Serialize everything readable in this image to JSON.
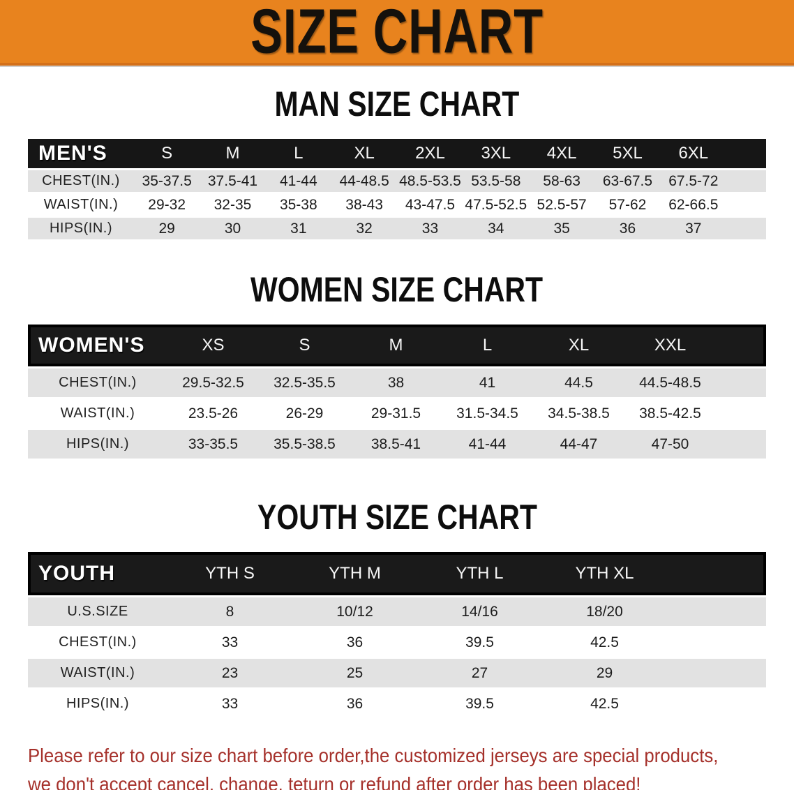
{
  "banner": {
    "title": "SIZE CHART",
    "bg_color": "#e8831e",
    "text_color": "#15110c"
  },
  "sections": [
    {
      "id": "men",
      "title": "MAN SIZE CHART",
      "table": {
        "header_label": "MEN'S",
        "columns": [
          "S",
          "M",
          "L",
          "XL",
          "2XL",
          "3XL",
          "4XL",
          "5XL",
          "6XL"
        ],
        "rows": [
          {
            "label": "CHEST(IN.)",
            "values": [
              "35-37.5",
              "37.5-41",
              "41-44",
              "44-48.5",
              "48.5-53.5",
              "53.5-58",
              "58-63",
              "63-67.5",
              "67.5-72"
            ]
          },
          {
            "label": "WAIST(IN.)",
            "values": [
              "29-32",
              "32-35",
              "35-38",
              "38-43",
              "43-47.5",
              "47.5-52.5",
              "52.5-57",
              "57-62",
              "62-66.5"
            ]
          },
          {
            "label": "HIPS(IN.)",
            "values": [
              "29",
              "30",
              "31",
              "32",
              "33",
              "34",
              "35",
              "36",
              "37"
            ]
          }
        ]
      }
    },
    {
      "id": "women",
      "title": "WOMEN SIZE CHART",
      "table": {
        "header_label": "WOMEN'S",
        "columns": [
          "XS",
          "S",
          "M",
          "L",
          "XL",
          "XXL"
        ],
        "rows": [
          {
            "label": "CHEST(IN.)",
            "values": [
              "29.5-32.5",
              "32.5-35.5",
              "38",
              "41",
              "44.5",
              "44.5-48.5"
            ]
          },
          {
            "label": "WAIST(IN.)",
            "values": [
              "23.5-26",
              "26-29",
              "29-31.5",
              "31.5-34.5",
              "34.5-38.5",
              "38.5-42.5"
            ]
          },
          {
            "label": "HIPS(IN.)",
            "values": [
              "33-35.5",
              "35.5-38.5",
              "38.5-41",
              "41-44",
              "44-47",
              "47-50"
            ]
          }
        ]
      }
    },
    {
      "id": "youth",
      "title": "YOUTH SIZE CHART",
      "table": {
        "header_label": "YOUTH",
        "columns": [
          "YTH S",
          "YTH M",
          "YTH L",
          "YTH XL"
        ],
        "rows": [
          {
            "label": "U.S.SIZE",
            "values": [
              "8",
              "10/12",
              "14/16",
              "18/20"
            ]
          },
          {
            "label": "CHEST(IN.)",
            "values": [
              "33",
              "36",
              "39.5",
              "42.5"
            ]
          },
          {
            "label": "WAIST(IN.)",
            "values": [
              "23",
              "25",
              "27",
              "29"
            ]
          },
          {
            "label": "HIPS(IN.)",
            "values": [
              "33",
              "36",
              "39.5",
              "42.5"
            ]
          }
        ]
      }
    }
  ],
  "disclaimer": {
    "line1": "Please refer to our size chart before order,the customized jerseys are special products,",
    "line2": "we don't accept cancel, change, teturn or refund after order has been placed!",
    "text_color": "#a5302a"
  }
}
